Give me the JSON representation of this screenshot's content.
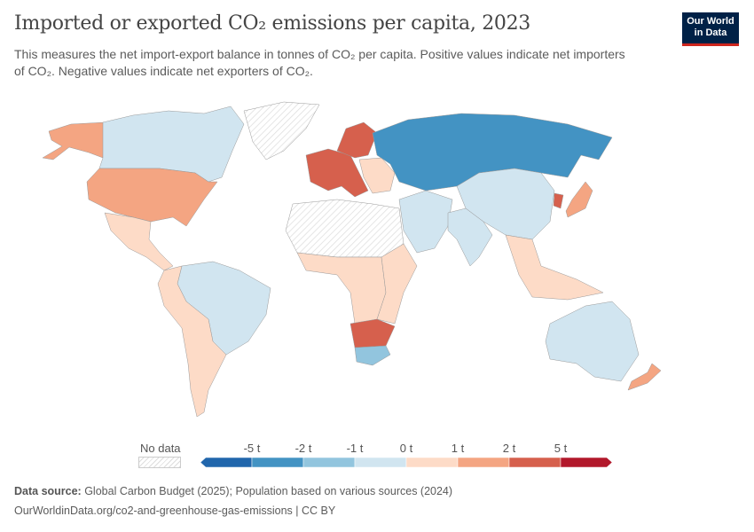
{
  "header": {
    "title": "Imported or exported CO₂ emissions per capita, 2023",
    "subtitle": "This measures the net import-export balance in tonnes of CO₂ per capita. Positive values indicate net importers of CO₂. Negative values indicate net exporters of CO₂.",
    "logo_line1": "Our World",
    "logo_line2": "in Data"
  },
  "legend": {
    "no_data_label": "No data",
    "ticks": [
      "-5 t",
      "-2 t",
      "-1 t",
      "0 t",
      "1 t",
      "2 t",
      "5 t"
    ],
    "colors": [
      "#2166ac",
      "#4393c3",
      "#92c5de",
      "#d1e5f0",
      "#fddbc7",
      "#f4a582",
      "#d6604d",
      "#b2182b"
    ],
    "no_data_color": "#e0e0e0"
  },
  "map_regions": [
    {
      "region": "alaska",
      "bin": 5
    },
    {
      "region": "canada",
      "bin": 3
    },
    {
      "region": "usa",
      "bin": 5
    },
    {
      "region": "mexico-central",
      "bin": 4
    },
    {
      "region": "brazil",
      "bin": 3
    },
    {
      "region": "south-america-rest",
      "bin": 4
    },
    {
      "region": "western-europe",
      "bin": 6
    },
    {
      "region": "scandinavia",
      "bin": 6
    },
    {
      "region": "eastern-europe",
      "bin": 4
    },
    {
      "region": "russia-kazakhstan",
      "bin": 1
    },
    {
      "region": "middle-east",
      "bin": 3
    },
    {
      "region": "north-africa",
      "bin": -1
    },
    {
      "region": "west-central-africa",
      "bin": 4
    },
    {
      "region": "southern-africa",
      "bin": 6
    },
    {
      "region": "south-africa",
      "bin": 2
    },
    {
      "region": "china",
      "bin": 3
    },
    {
      "region": "india",
      "bin": 3
    },
    {
      "region": "southeast-asia",
      "bin": 4
    },
    {
      "region": "japan",
      "bin": 5
    },
    {
      "region": "korea",
      "bin": 6
    },
    {
      "region": "australia",
      "bin": 3
    },
    {
      "region": "new-zealand",
      "bin": 5
    },
    {
      "region": "greenland",
      "bin": -1
    },
    {
      "region": "east-africa",
      "bin": 4
    }
  ],
  "footer": {
    "source_label": "Data source:",
    "source_text": " Global Carbon Budget (2025); Population based on various sources (2024)",
    "url_line": "OurWorldinData.org/co2-and-greenhouse-gas-emissions | CC BY"
  }
}
